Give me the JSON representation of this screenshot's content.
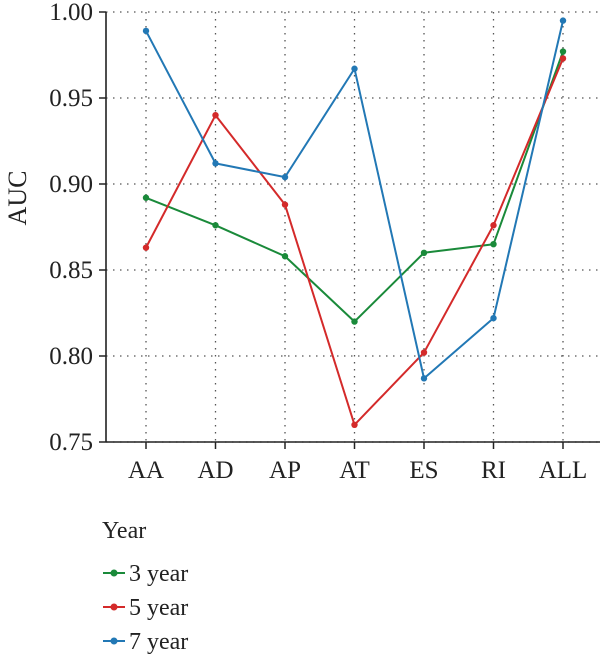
{
  "chart_data": {
    "type": "line",
    "title": "",
    "xlabel": "",
    "ylabel": "AUC",
    "categories": [
      "AA",
      "AD",
      "AP",
      "AT",
      "ES",
      "RI",
      "ALL"
    ],
    "ylim": [
      0.75,
      1.0
    ],
    "yticks": [
      "0.75",
      "0.80",
      "0.85",
      "0.90",
      "0.95",
      "1.00"
    ],
    "grid": true,
    "legend_placement": "bottom-left",
    "legend_title": "Year",
    "series": [
      {
        "name": "3 year",
        "color": "#1a8a3a",
        "values": [
          0.892,
          0.876,
          0.858,
          0.82,
          0.86,
          0.865,
          0.977
        ]
      },
      {
        "name": "5 year",
        "color": "#d42a2a",
        "values": [
          0.863,
          0.94,
          0.888,
          0.76,
          0.802,
          0.876,
          0.973
        ]
      },
      {
        "name": "7 year",
        "color": "#2278b5",
        "values": [
          0.989,
          0.912,
          0.904,
          0.967,
          0.787,
          0.822,
          0.995
        ]
      }
    ]
  }
}
